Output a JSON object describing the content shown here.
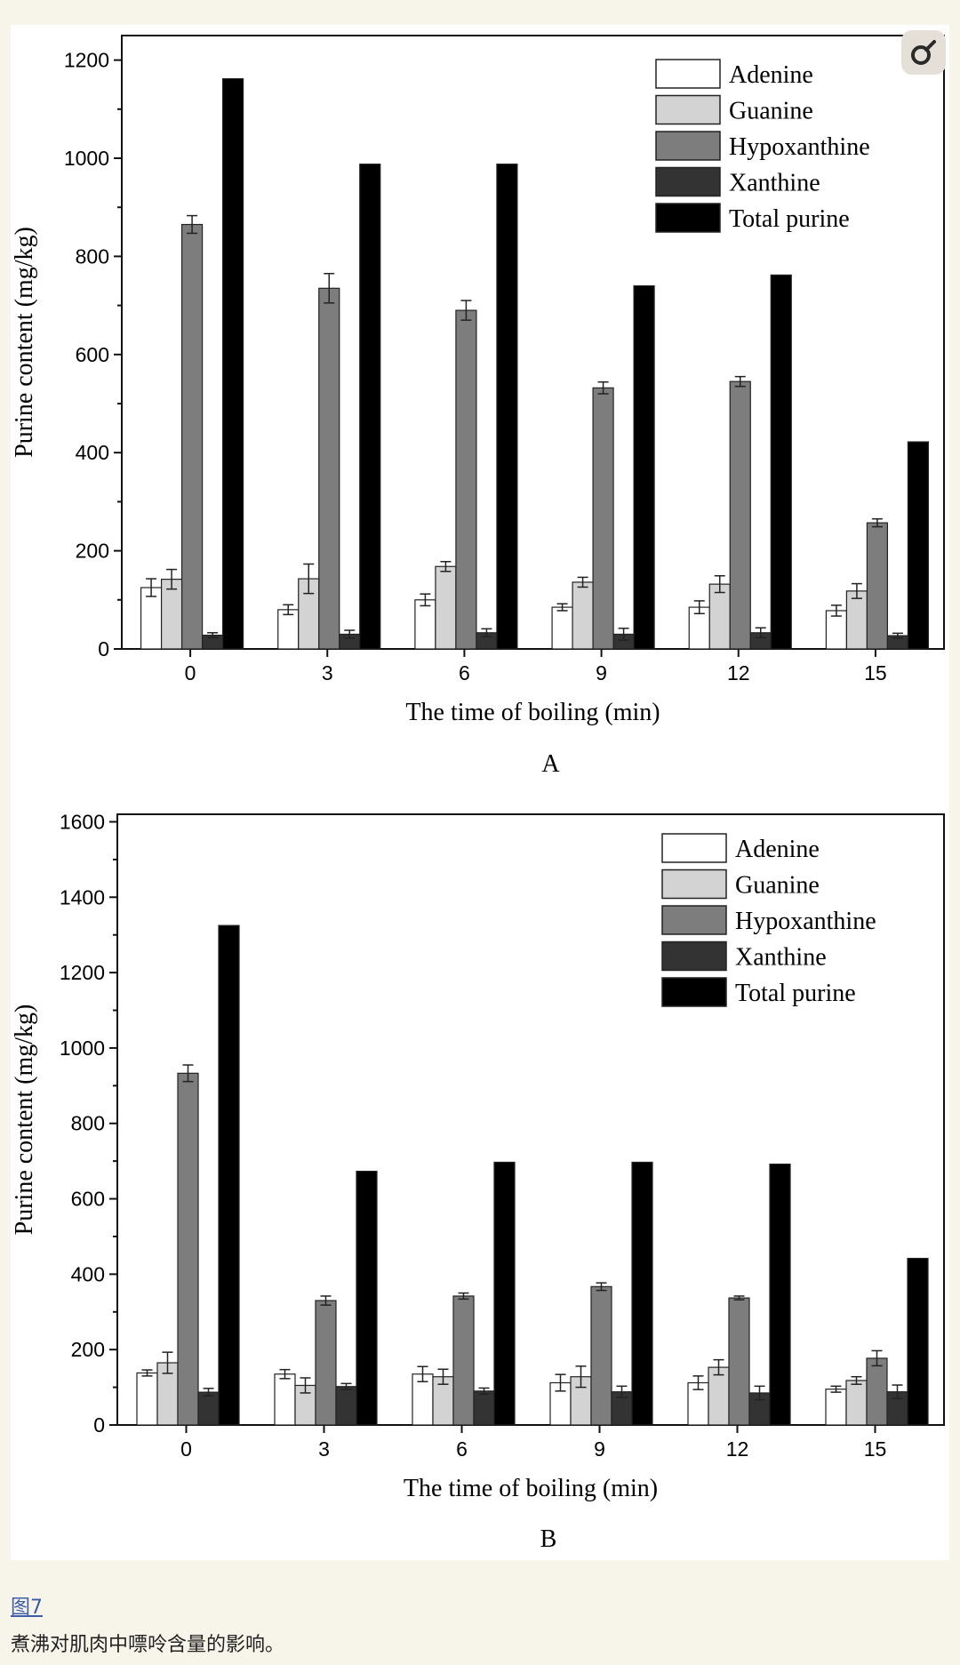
{
  "figure": {
    "link_text": "图7",
    "caption": "煮沸对肌肉中嘌呤含量的影响。"
  },
  "colors": {
    "Adenine": "#ffffff",
    "Guanine": "#d3d3d3",
    "Hypoxanthine": "#7d7d7d",
    "Xanthine": "#333333",
    "Total purine": "#000000"
  },
  "chart_data": [
    {
      "type": "bar",
      "panel_label": "A",
      "xlabel": "The time of boiling (min)",
      "ylabel": "Purine content (mg/kg)",
      "ylim": [
        0,
        1250
      ],
      "yticks": [
        0,
        200,
        400,
        600,
        800,
        1000,
        1200
      ],
      "legend_position": "top-right",
      "categories": [
        "0",
        "3",
        "6",
        "9",
        "12",
        "15"
      ],
      "series": [
        {
          "name": "Adenine",
          "values": [
            125,
            80,
            100,
            85,
            85,
            78
          ],
          "errors": [
            18,
            10,
            12,
            7,
            13,
            11
          ]
        },
        {
          "name": "Guanine",
          "values": [
            142,
            143,
            168,
            136,
            132,
            118
          ],
          "errors": [
            20,
            30,
            10,
            10,
            17,
            15
          ]
        },
        {
          "name": "Hypoxanthine",
          "values": [
            865,
            735,
            690,
            532,
            545,
            257
          ],
          "errors": [
            18,
            30,
            20,
            12,
            10,
            8
          ]
        },
        {
          "name": "Xanthine",
          "values": [
            28,
            30,
            33,
            30,
            33,
            27
          ],
          "errors": [
            5,
            8,
            8,
            12,
            10,
            5
          ]
        },
        {
          "name": "Total purine",
          "values": [
            1162,
            988,
            988,
            740,
            762,
            422
          ],
          "errors": null
        }
      ]
    },
    {
      "type": "bar",
      "panel_label": "B",
      "xlabel": "The time of boiling (min)",
      "ylabel": "Purine content (mg/kg)",
      "ylim": [
        0,
        1620
      ],
      "yticks": [
        0,
        200,
        400,
        600,
        800,
        1000,
        1200,
        1400,
        1600
      ],
      "legend_position": "top-right",
      "categories": [
        "0",
        "3",
        "6",
        "9",
        "12",
        "15"
      ],
      "series": [
        {
          "name": "Adenine",
          "values": [
            138,
            135,
            135,
            112,
            112,
            95
          ],
          "errors": [
            8,
            12,
            20,
            22,
            18,
            8
          ]
        },
        {
          "name": "Guanine",
          "values": [
            165,
            105,
            128,
            128,
            153,
            118
          ],
          "errors": [
            28,
            20,
            20,
            28,
            20,
            10
          ]
        },
        {
          "name": "Hypoxanthine",
          "values": [
            933,
            330,
            342,
            367,
            337,
            177
          ],
          "errors": [
            22,
            12,
            8,
            10,
            5,
            20
          ]
        },
        {
          "name": "Xanthine",
          "values": [
            87,
            102,
            90,
            88,
            85,
            88
          ],
          "errors": [
            10,
            8,
            8,
            15,
            18,
            18
          ]
        },
        {
          "name": "Total purine",
          "values": [
            1325,
            673,
            697,
            697,
            692,
            442
          ],
          "errors": null
        }
      ]
    }
  ]
}
